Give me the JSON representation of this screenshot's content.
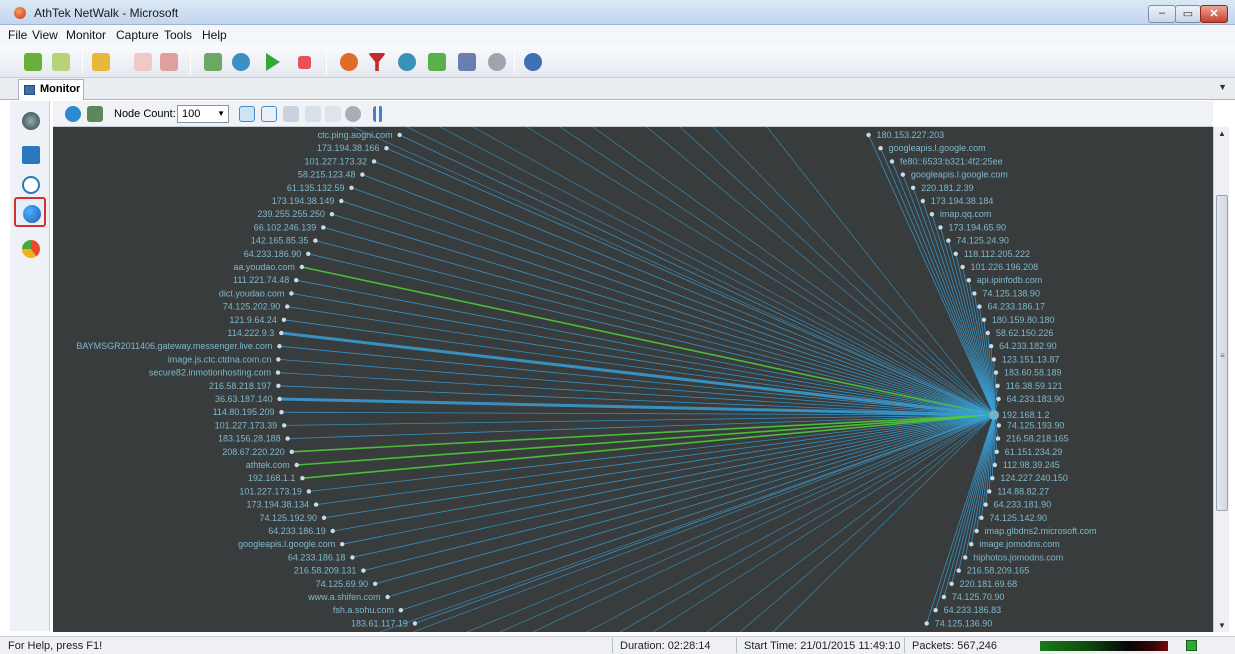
{
  "window": {
    "title": "AthTek NetWalk - Microsoft"
  },
  "menubar": [
    "File",
    "View",
    "Monitor",
    "Capture",
    "Tools",
    "Help"
  ],
  "tabs": [
    {
      "label": "Monitor"
    }
  ],
  "monitor_toolbar": {
    "node_count_label": "Node Count:",
    "node_count_value": "100"
  },
  "graph": {
    "hub": "192.168.1.2",
    "colors": {
      "background": "#383c3d",
      "edge": "#3a9fd6",
      "highlight": "#4fd23a",
      "label": "#7fb8cc"
    },
    "left_nodes": [
      "ctc.ping.aogni.com",
      "173.194.38.166",
      "101.227.173.32",
      "58.215.123.48",
      "61.135.132.59",
      "173.194.38.149",
      "239.255.255.250",
      "66.102.246.139",
      "142.165.85.35",
      "64.233.186.90",
      "aa.youdao.com",
      "111.221.74.48",
      "dict.youdao.com",
      "74.125.202.90",
      "121.9.64.24",
      "114.222.9.3",
      "BAYMSGR2011406.gateway.messenger.live.com",
      "image.js.ctc.ctdna.com.cn",
      "secure82.inmotionhosting.com",
      "216.58.218.197",
      "36.63.187.140",
      "114.80.195.209",
      "101.227.173.39",
      "183.156.28.188",
      "208.67.220.220",
      "athtek.com",
      "192.168.1.1",
      "101.227.173.19",
      "173.194.38.134",
      "74.125.192.90",
      "64.233.186.19",
      "googleapis.l.google.com",
      "64.233.186.18",
      "216.58.209.131",
      "74.125.69.90",
      "www.a.shifen.com",
      "fsh.a.sohu.com",
      "183.61.117.19"
    ],
    "right_nodes": [
      "180.153.227.203",
      "googleapis.l.google.com",
      "fe80::6533:b321:4f2:25ee",
      "googleapis.l.google.com",
      "220.181.2.39",
      "173.194.38.184",
      "imap.qq.com",
      "173.194.65.90",
      "74.125.24.90",
      "118.112.205.222",
      "101.226.196.208",
      "api.ipinfodb.com",
      "74.125.138.90",
      "64.233.186.17",
      "180.159.80.180",
      "58.62.150.226",
      "64.233.182.90",
      "123.151.13.87",
      "183.60.58.189",
      "116.38.59.121",
      "64.233.183.90",
      "192.168.1.2",
      "74.125.193.90",
      "216.58.218.165",
      "61.151.234.29",
      "112.98.39.245",
      "124.227.240.150",
      "114.88.82.27",
      "64.233.181.90",
      "74.125.142.90",
      "imap.glbdns2.microsoft.com",
      "image.jomodns.com",
      "hiphotos.jomodns.com",
      "216.58.209.165",
      "220.181.69.68",
      "74.125.70.90",
      "64.233.186.83",
      "74.125.136.90"
    ]
  },
  "statusbar": {
    "help": "For Help, press F1!",
    "duration": "Duration: 02:28:14",
    "start_time": "Start Time: 21/01/2015 11:49:10",
    "packets": "Packets: 567,246"
  }
}
